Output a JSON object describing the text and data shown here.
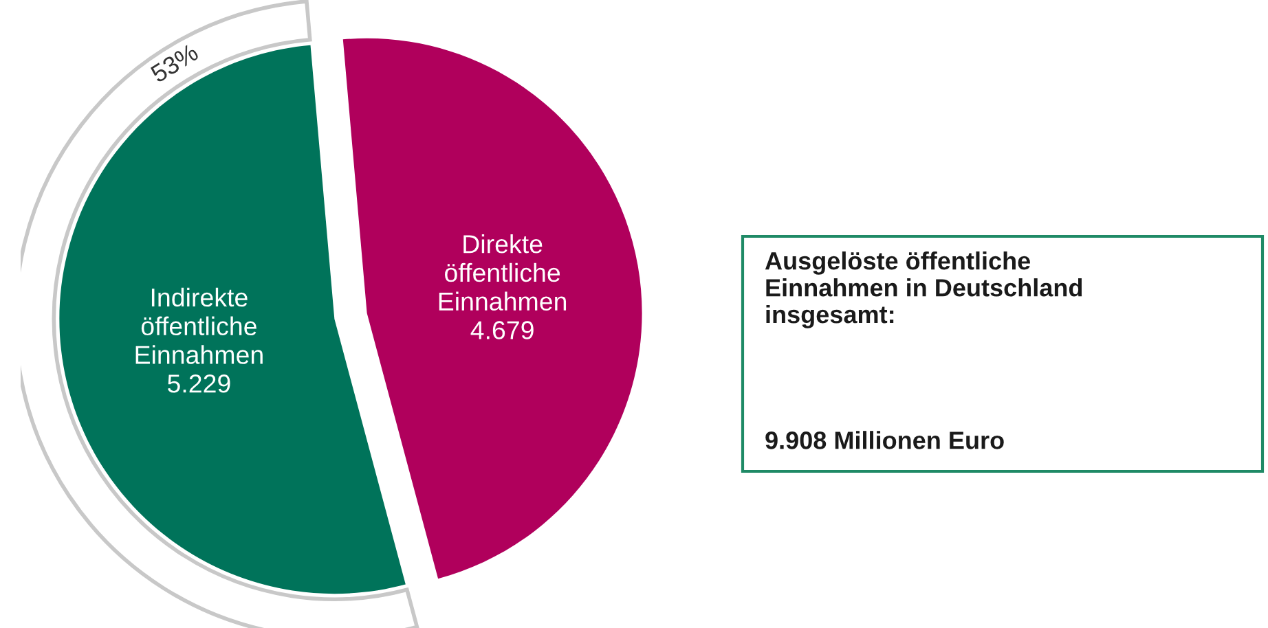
{
  "chart_data": {
    "type": "pie",
    "categories": [
      "Direkte\nöffentliche\nEinnahmen",
      "Indirekte\nöffentliche\nEinnahmen"
    ],
    "values": [
      4679,
      5229
    ],
    "colors": [
      "#b0005c",
      "#00735a"
    ],
    "value_labels": [
      "4.679",
      "5.229"
    ],
    "annotations": [
      "53%",
      "Ausgelöste öffentliche\nEinnahmen in Deutschland\ninsgesamt:",
      "9.908 Millionen Euro"
    ]
  }
}
